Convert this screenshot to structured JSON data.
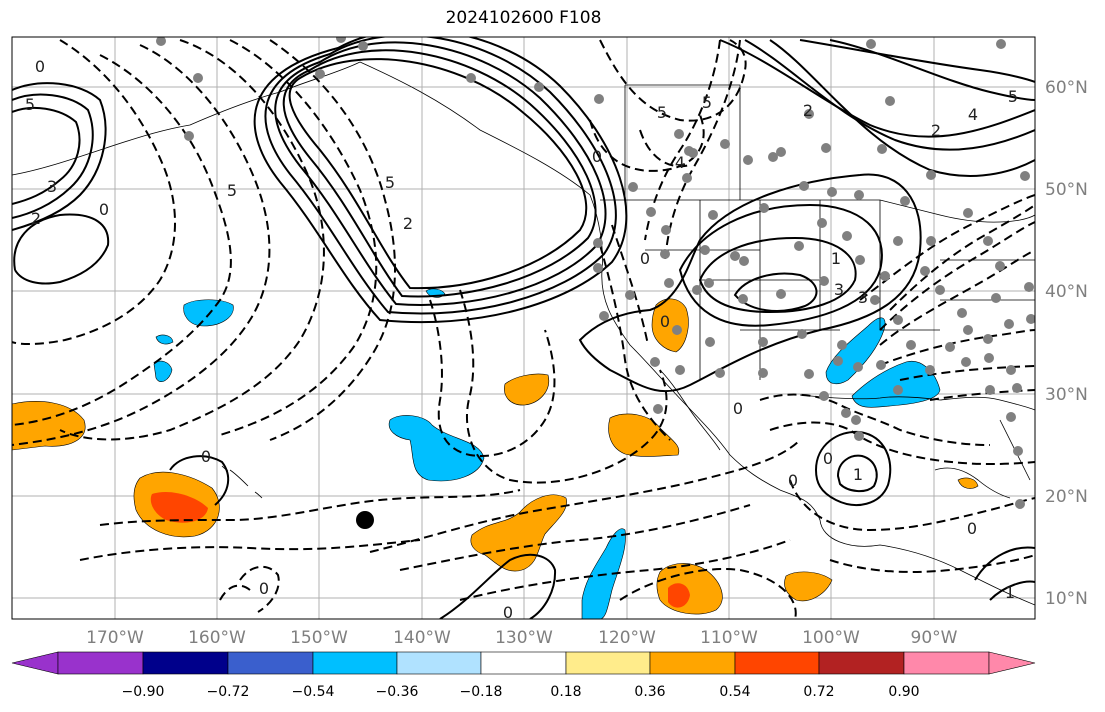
{
  "title": "2024102600 F108",
  "lon_labels": [
    "170°W",
    "160°W",
    "150°W",
    "140°W",
    "130°W",
    "120°W",
    "110°W",
    "100°W",
    "90°W"
  ],
  "lat_labels": [
    "60°N",
    "50°N",
    "40°N",
    "30°N",
    "20°N",
    "10°N"
  ],
  "colorbar": {
    "colors": [
      "#9932cc",
      "#00008b",
      "#3a5fcd",
      "#00bfff",
      "#b0e2ff",
      "#ffffff",
      "#ffec8b",
      "#ffa500",
      "#ff4500",
      "#b22222",
      "#ff88aa"
    ],
    "tick_labels": [
      "−0.90",
      "−0.72",
      "−0.54",
      "−0.36",
      "−0.18",
      "0.18",
      "0.36",
      "0.54",
      "0.72",
      "0.90"
    ]
  },
  "contour_labels": [
    "0",
    "5",
    "3",
    "2",
    "0",
    "5",
    "5",
    "2",
    "5",
    "0",
    "2",
    "5",
    "4",
    "2",
    "0",
    "4",
    "5",
    "3",
    "1",
    "3",
    "0",
    "0",
    "0",
    "0",
    "0",
    "0",
    "0",
    "1",
    "0",
    "1"
  ]
}
